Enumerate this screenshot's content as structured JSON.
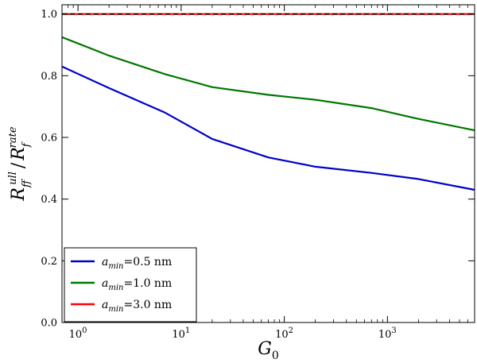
{
  "chart_data": {
    "type": "line",
    "title": "",
    "xlabel": "G",
    "xlabel_sub": "0",
    "ylabel": "R_f^full / R_f^rate",
    "ylabel_parts": {
      "r1": "R",
      "sub1": "f",
      "sup1": "full",
      "slash": "/",
      "r2": "R",
      "sub2": "f",
      "sup2": "rate"
    },
    "xscale": "log",
    "xlim": [
      0.7,
      7000
    ],
    "ylim": [
      0.0,
      1.03
    ],
    "grid": false,
    "legend_loc": "lower-left",
    "x_ticks": [
      {
        "value": 1,
        "label": "10",
        "exp": "0"
      },
      {
        "value": 10,
        "label": "10",
        "exp": "1"
      },
      {
        "value": 100,
        "label": "10",
        "exp": "2"
      },
      {
        "value": 1000,
        "label": "10",
        "exp": "3"
      }
    ],
    "y_ticks": [
      {
        "value": 0.0,
        "label": "0.0"
      },
      {
        "value": 0.2,
        "label": "0.2"
      },
      {
        "value": 0.4,
        "label": "0.4"
      },
      {
        "value": 0.6,
        "label": "0.6"
      },
      {
        "value": 0.8,
        "label": "0.8"
      },
      {
        "value": 1.0,
        "label": "1.0"
      }
    ],
    "series": [
      {
        "name": "a_min=0.5 nm",
        "legend": {
          "var": "a",
          "sub": "min",
          "rest": "=0.5 nm"
        },
        "color": "#0000cc",
        "dashed": false,
        "x": [
          0.7,
          2,
          7,
          20,
          70,
          200,
          700,
          2000,
          7000
        ],
        "y": [
          0.83,
          0.76,
          0.68,
          0.595,
          0.535,
          0.505,
          0.485,
          0.465,
          0.43
        ]
      },
      {
        "name": "a_min=1.0 nm",
        "legend": {
          "var": "a",
          "sub": "min",
          "rest": "=1.0 nm"
        },
        "color": "#007700",
        "dashed": false,
        "x": [
          0.7,
          2,
          7,
          20,
          70,
          200,
          700,
          2000,
          7000
        ],
        "y": [
          0.925,
          0.865,
          0.805,
          0.763,
          0.738,
          0.722,
          0.695,
          0.66,
          0.623
        ]
      },
      {
        "name": "a_min=3.0 nm",
        "legend": {
          "var": "a",
          "sub": "min",
          "rest": "=3.0 nm"
        },
        "color": "#ff0000",
        "dashed": false,
        "x": [
          0.7,
          7000
        ],
        "y": [
          1.0,
          1.0
        ]
      },
      {
        "name": "",
        "legend": null,
        "color": "#000000",
        "dashed": true,
        "x": [
          0.7,
          7000
        ],
        "y": [
          1.0,
          1.0
        ]
      }
    ]
  }
}
